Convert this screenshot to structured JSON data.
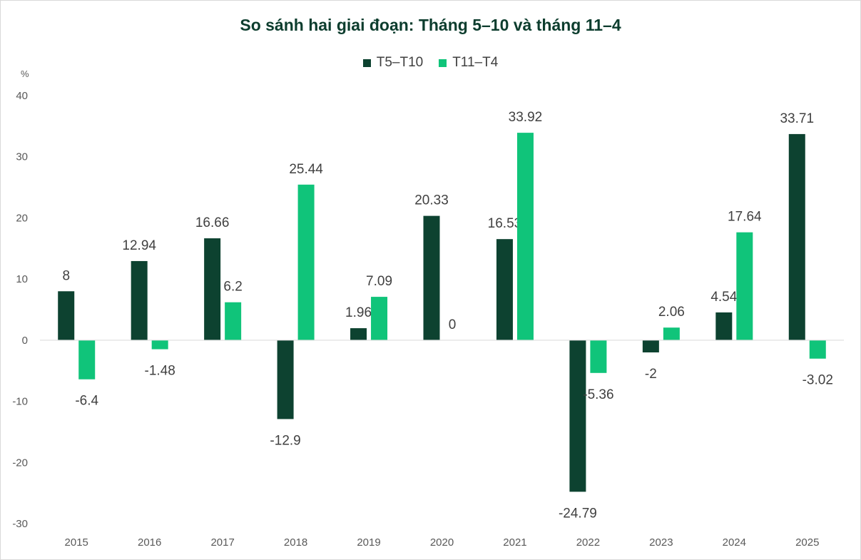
{
  "colors": {
    "series_dark": "#0d4230",
    "series_light": "#10c47a",
    "title": "#0d3d2e",
    "axis": "#d9d9d9",
    "text": "#404040"
  },
  "chart_data": {
    "type": "bar",
    "title": "So sánh hai giai đoạn: Tháng 5–10 và tháng 11–4",
    "ylabel": "%",
    "ylim": [
      -30,
      40
    ],
    "yticks": [
      40,
      30,
      20,
      10,
      0,
      -10,
      -20,
      -30
    ],
    "grid": false,
    "legend_position": "top",
    "categories": [
      "2015",
      "2016",
      "2017",
      "2018",
      "2019",
      "2020",
      "2021",
      "2022",
      "2023",
      "2024",
      "2025"
    ],
    "series": [
      {
        "name": "T5–T10",
        "color": "#0d4230",
        "values": [
          8,
          12.94,
          16.66,
          -12.9,
          1.96,
          20.33,
          16.53,
          -24.79,
          -2,
          4.54,
          33.71
        ]
      },
      {
        "name": "T11–T4",
        "color": "#10c47a",
        "values": [
          -6.4,
          -1.48,
          6.2,
          25.44,
          7.09,
          0,
          33.92,
          -5.36,
          2.06,
          17.64,
          -3.02
        ]
      }
    ]
  }
}
